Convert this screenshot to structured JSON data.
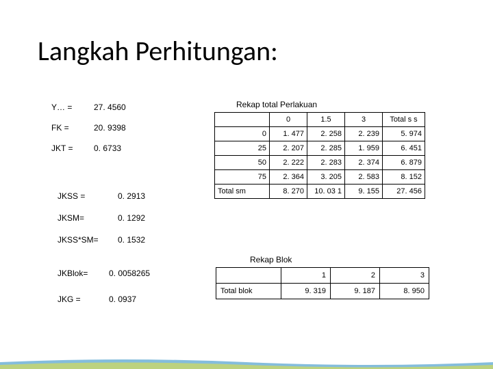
{
  "title": "Langkah Perhitungan:",
  "pairs_top": [
    {
      "label": "Y… =",
      "value": "27. 4560"
    },
    {
      "label": "FK  =",
      "value": "20. 9398"
    },
    {
      "label": "JKT =",
      "value": "0. 6733"
    }
  ],
  "pairs_mid": [
    {
      "label": "JKSS =",
      "value": "0. 2913"
    },
    {
      "label": "JKSM=",
      "value": "0. 1292"
    },
    {
      "label": "JKSS*SM=",
      "value": "0. 1532"
    }
  ],
  "pairs_bot": [
    {
      "label": "JKBlok=",
      "value": "0. 0058265"
    },
    {
      "label": "JKG =",
      "value": "0. 0937"
    }
  ],
  "perlakuan": {
    "title": "Rekap total Perlakuan",
    "col_headers": [
      "0",
      "1.5",
      "3",
      "Total s s"
    ],
    "rows": [
      {
        "key": "0",
        "cells": [
          "1. 477",
          "2. 258",
          "2. 239",
          "5. 974"
        ]
      },
      {
        "key": "25",
        "cells": [
          "2. 207",
          "2. 285",
          "1. 959",
          "6. 451"
        ]
      },
      {
        "key": "50",
        "cells": [
          "2. 222",
          "2. 283",
          "2. 374",
          "6. 879"
        ]
      },
      {
        "key": "75",
        "cells": [
          "2. 364",
          "3. 205",
          "2. 583",
          "8. 152"
        ]
      }
    ],
    "total_row": {
      "key": "Total sm",
      "cells": [
        "8. 270",
        "10. 03 1",
        "9. 155",
        "27. 456"
      ]
    }
  },
  "blok": {
    "title": "Rekap Blok",
    "col_headers": [
      "1",
      "2",
      "3"
    ],
    "row": {
      "key": "Total blok",
      "cells": [
        "9. 319",
        "9. 187",
        "8. 950"
      ]
    }
  },
  "colors": {
    "title": "#000000",
    "text": "#000000",
    "border": "#000000",
    "deco_top": "#6eb1d6",
    "deco_bot": "#c6d66e"
  },
  "col_widths": {
    "t1_c0": 80,
    "t1_c1": 55,
    "t1_c2": 55,
    "t1_c3": 55,
    "t1_c4": 62,
    "t2_c0": 95,
    "t2_c1": 72,
    "t2_c2": 72,
    "t2_c3": 72
  }
}
